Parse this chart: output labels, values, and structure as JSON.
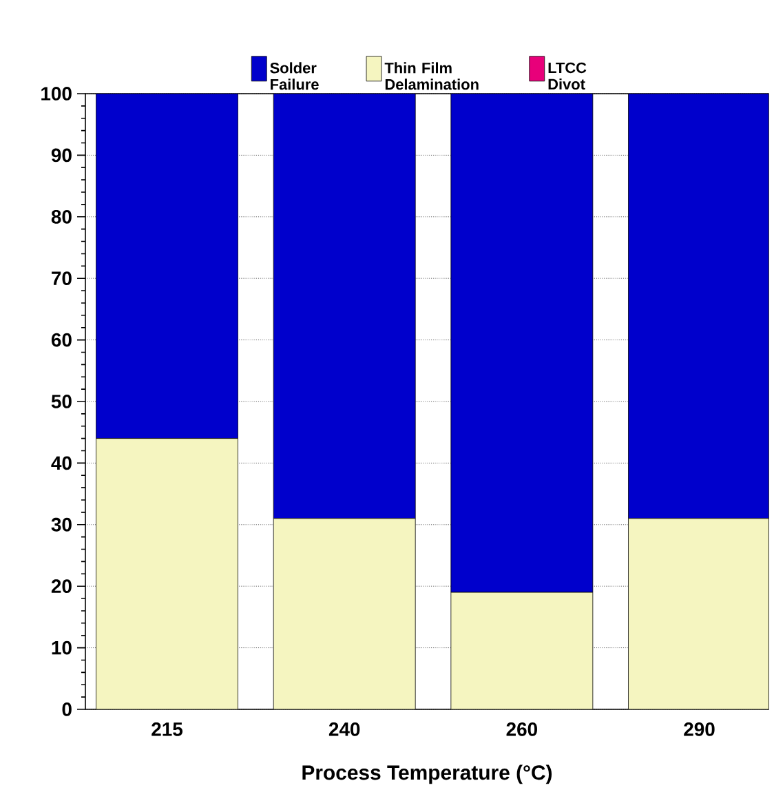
{
  "chart_data": {
    "type": "bar",
    "stacked": true,
    "xlabel": "Process Temperature  (°C)",
    "categories": [
      "215",
      "240",
      "260",
      "290"
    ],
    "series": [
      {
        "name": "Thin Film Delamination",
        "color": "#f5f5c0",
        "values": [
          44,
          31,
          19,
          31
        ]
      },
      {
        "name": "Solder Failure",
        "color": "#0000cc",
        "values": [
          56,
          69,
          81,
          69
        ]
      },
      {
        "name": "LTCC Divot",
        "color": "#e8007a",
        "values": [
          0,
          0,
          0,
          0
        ]
      }
    ],
    "ylim": [
      0,
      100
    ],
    "yticks": [
      0,
      10,
      20,
      30,
      40,
      50,
      60,
      70,
      80,
      90,
      100
    ],
    "grid": "y",
    "legend": "top"
  }
}
